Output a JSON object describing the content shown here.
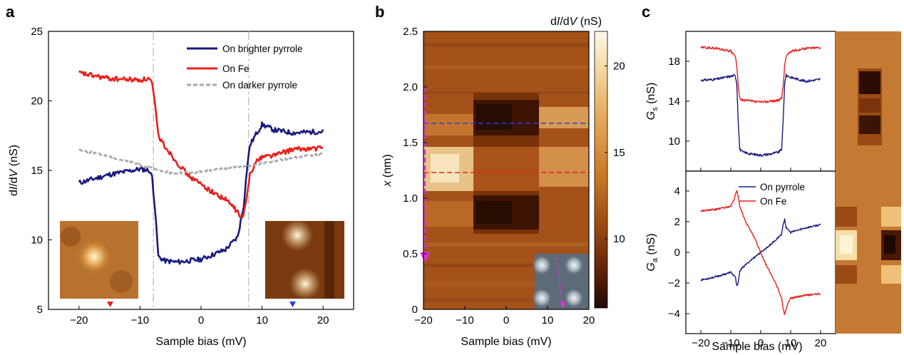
{
  "panels": {
    "a": {
      "letter": "a",
      "xlabel": "Sample bias (mV)",
      "ylabel_main": "d",
      "ylabel_I": "I",
      "ylabel_slash": "/d",
      "ylabel_V": "V",
      "ylabel_unit": " (nS)",
      "legend": [
        "On brighter pyrrole",
        "On Fe",
        "On darker pyrrole"
      ]
    },
    "b": {
      "letter": "b",
      "xlabel": "Sample bias (mV)",
      "ylabel_var": "x",
      "ylabel_unit": " (nm)",
      "cbar_d": "d",
      "cbar_I": "I",
      "cbar_slash": "/d",
      "cbar_V": "V",
      "cbar_unit": " (nS)"
    },
    "c": {
      "letter": "c",
      "xlabel": "Sample bias (mV)",
      "top_ylabel_G": "G",
      "top_ylabel_sub": "s",
      "top_ylabel_unit": " (nS)",
      "bottom_ylabel_G": "G",
      "bottom_ylabel_sub": "a",
      "bottom_ylabel_unit": " (nS)",
      "legend": [
        "On pyrrole",
        "On Fe"
      ]
    }
  },
  "colors": {
    "navy": "#1a1a80",
    "red": "#e8201c",
    "gray": "#a8a8a8",
    "magenta": "#e62ee6",
    "blue_dash": "#2a3bd6",
    "red_dash": "#e8201c"
  },
  "chart_data": [
    {
      "panel": "a",
      "type": "line",
      "xlabel": "Sample bias (mV)",
      "ylabel": "dI/dV (nS)",
      "xlim": [
        -25,
        25
      ],
      "ylim": [
        5,
        25
      ],
      "xticks": [
        "-20",
        "-10",
        "0",
        "10",
        "20"
      ],
      "yticks": [
        "5",
        "10",
        "15",
        "20",
        "25"
      ],
      "vlines": [
        -7.8,
        7.8
      ],
      "series": [
        {
          "name": "On brighter pyrrole",
          "color": "#1a1a80",
          "style": "solid",
          "x": [
            -20,
            -15,
            -10,
            -8.5,
            -8,
            -7.5,
            -7,
            -6,
            -4,
            0,
            4,
            6,
            7,
            7.5,
            8,
            9,
            10,
            12,
            15,
            20
          ],
          "y": [
            14.1,
            14.7,
            15.1,
            15.0,
            14.5,
            12.0,
            8.8,
            8.5,
            8.4,
            8.6,
            9.3,
            10.2,
            12.5,
            15.0,
            16.8,
            17.6,
            18.3,
            17.9,
            17.7,
            17.8
          ]
        },
        {
          "name": "On Fe",
          "color": "#e8201c",
          "style": "solid",
          "x": [
            -20,
            -15,
            -10,
            -8.5,
            -8,
            -7.5,
            -7,
            -6,
            -4,
            -2,
            0,
            2,
            4,
            5,
            6,
            6.5,
            7,
            7.5,
            8,
            9,
            10,
            12,
            15,
            20
          ],
          "y": [
            22.0,
            21.6,
            21.5,
            21.6,
            21.2,
            19.5,
            17.5,
            16.8,
            15.6,
            14.6,
            14.0,
            13.4,
            12.9,
            12.5,
            12.0,
            11.6,
            11.8,
            13.0,
            14.8,
            15.6,
            16.0,
            16.1,
            16.5,
            16.6
          ]
        },
        {
          "name": "On darker pyrrole",
          "color": "#a8a8a8",
          "style": "dashed",
          "x": [
            -20,
            -15,
            -10,
            -7,
            -5,
            0,
            5,
            8,
            10,
            15,
            20
          ],
          "y": [
            16.5,
            16.0,
            15.4,
            15.0,
            14.8,
            14.9,
            15.2,
            15.3,
            15.5,
            15.9,
            16.2
          ]
        }
      ],
      "insets": [
        {
          "position": "lower-left",
          "arrow_color": "#e8201c",
          "arrow_x": -15
        },
        {
          "position": "lower-right",
          "arrow_color": "#2a3bd6",
          "arrow_x": 15
        }
      ]
    },
    {
      "panel": "b",
      "type": "heatmap",
      "xlabel": "Sample bias (mV)",
      "ylabel": "x (nm)",
      "xlim": [
        -20,
        20
      ],
      "ylim": [
        0,
        2.5
      ],
      "xticks": [
        "-20",
        "-10",
        "0",
        "10",
        "20"
      ],
      "yticks": [
        "0",
        "0.5",
        "1.0",
        "1.5",
        "2.0",
        "2.5"
      ],
      "colorbar": {
        "label": "dI/dV (nS)",
        "range": [
          6,
          22
        ],
        "ticks": [
          "10",
          "15",
          "20"
        ]
      },
      "horizontal_lines": [
        {
          "y": 1.67,
          "color": "#2a3bd6"
        },
        {
          "y": 1.22,
          "color": "#e8201c"
        }
      ],
      "arrow": {
        "x": -20,
        "from": 2.0,
        "to": 0.35,
        "color": "#e62ee6"
      }
    },
    {
      "panel": "c-top",
      "type": "line",
      "ylabel": "Gs (nS)",
      "xlim": [
        -25,
        25
      ],
      "ylim": [
        7,
        21
      ],
      "yticks": [
        "10",
        "14",
        "18"
      ],
      "series": [
        {
          "name": "On pyrrole",
          "color": "#1a1a80",
          "x": [
            -20,
            -15,
            -10,
            -8.5,
            -8,
            -7.5,
            -7,
            -6,
            -3,
            0,
            3,
            6,
            7,
            7.5,
            8,
            8.5,
            10,
            15,
            20
          ],
          "y": [
            16.1,
            16.2,
            16.5,
            16.6,
            15.8,
            12.0,
            9.2,
            8.9,
            8.7,
            8.6,
            8.7,
            8.9,
            9.2,
            12.0,
            15.8,
            16.6,
            16.4,
            16.0,
            16.2
          ]
        },
        {
          "name": "On Fe",
          "color": "#e8201c",
          "x": [
            -20,
            -15,
            -10,
            -8.5,
            -8,
            -7.5,
            -7,
            -6,
            -3,
            0,
            3,
            6,
            7,
            7.5,
            8,
            8.5,
            10,
            15,
            20
          ],
          "y": [
            19.4,
            19.3,
            19.0,
            18.5,
            17.6,
            15.5,
            14.3,
            14.1,
            14.0,
            13.9,
            14.0,
            14.1,
            14.3,
            15.5,
            17.6,
            18.5,
            19.0,
            19.3,
            19.4
          ]
        }
      ]
    },
    {
      "panel": "c-bottom",
      "type": "line",
      "xlabel": "Sample bias (mV)",
      "ylabel": "Ga (nS)",
      "xlim": [
        -25,
        25
      ],
      "ylim": [
        -5.3,
        5.3
      ],
      "xticks": [
        "-20",
        "-10",
        "0",
        "10",
        "20"
      ],
      "yticks": [
        "-4",
        "-2",
        "0",
        "2",
        "4"
      ],
      "series": [
        {
          "name": "On pyrrole",
          "color": "#1a1a80",
          "x": [
            -20,
            -15,
            -10,
            -8.5,
            -8,
            -7.5,
            -7,
            -5,
            -2,
            0,
            2,
            5,
            7,
            7.5,
            8,
            8.5,
            10,
            15,
            20
          ],
          "y": [
            -1.8,
            -1.6,
            -1.3,
            -1.6,
            -2.2,
            -2.0,
            -1.2,
            -0.8,
            -0.3,
            0.0,
            0.3,
            0.8,
            1.2,
            1.8,
            2.2,
            1.6,
            1.3,
            1.6,
            1.8
          ]
        },
        {
          "name": "On Fe",
          "color": "#e8201c",
          "x": [
            -20,
            -15,
            -10,
            -9,
            -8,
            -7.5,
            -7,
            -5,
            -2,
            0,
            2,
            5,
            7,
            7.5,
            8,
            9,
            10,
            15,
            20
          ],
          "y": [
            2.7,
            2.8,
            3.0,
            3.4,
            4.0,
            3.7,
            3.0,
            2.0,
            0.9,
            0.0,
            -0.9,
            -2.0,
            -3.0,
            -3.7,
            -4.0,
            -3.4,
            -3.0,
            -2.8,
            -2.7
          ]
        }
      ]
    }
  ]
}
